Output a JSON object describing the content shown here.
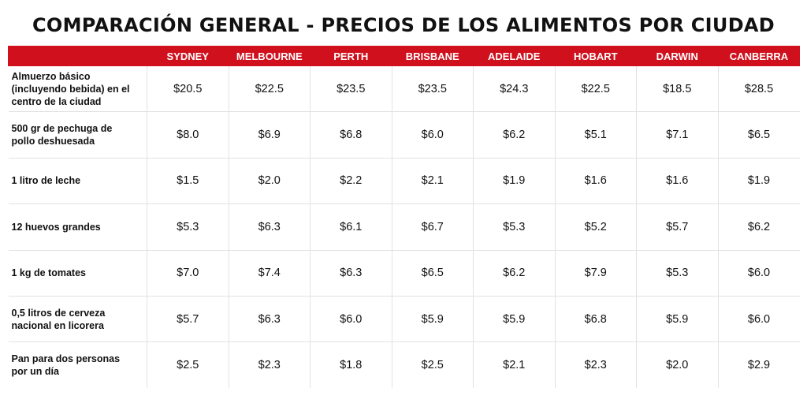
{
  "chart_data": {
    "type": "table",
    "title": "COMPARACIÓN GENERAL - PRECIOS DE LOS ALIMENTOS POR CIUDAD",
    "columns": [
      "SYDNEY",
      "MELBOURNE",
      "PERTH",
      "BRISBANE",
      "ADELAIDE",
      "HOBART",
      "DARWIN",
      "CANBERRA"
    ],
    "rows": [
      {
        "label": "Almuerzo básico (incluyendo bebida) en el centro de la ciudad",
        "values": [
          "$20.5",
          "$22.5",
          "$23.5",
          "$23.5",
          "$24.3",
          "$22.5",
          "$18.5",
          "$28.5"
        ]
      },
      {
        "label": "500 gr de pechuga de pollo deshuesada",
        "values": [
          "$8.0",
          "$6.9",
          "$6.8",
          "$6.0",
          "$6.2",
          "$5.1",
          "$7.1",
          "$6.5"
        ]
      },
      {
        "label": "1 litro de leche",
        "values": [
          "$1.5",
          "$2.0",
          "$2.2",
          "$2.1",
          "$1.9",
          "$1.6",
          "$1.6",
          "$1.9"
        ]
      },
      {
        "label": "12 huevos grandes",
        "values": [
          "$5.3",
          "$6.3",
          "$6.1",
          "$6.7",
          "$5.3",
          "$5.2",
          "$5.7",
          "$6.2"
        ]
      },
      {
        "label": "1 kg de tomates",
        "values": [
          "$7.0",
          "$7.4",
          "$6.3",
          "$6.5",
          "$6.2",
          "$7.9",
          "$5.3",
          "$6.0"
        ]
      },
      {
        "label": "0,5 litros de cerveza nacional en licorera",
        "values": [
          "$5.7",
          "$6.3",
          "$6.0",
          "$5.9",
          "$5.9",
          "$6.8",
          "$5.9",
          "$6.0"
        ]
      },
      {
        "label": "Pan para dos personas por un día",
        "values": [
          "$2.5",
          "$2.3",
          "$1.8",
          "$2.5",
          "$2.1",
          "$2.3",
          "$2.0",
          "$2.9"
        ]
      }
    ]
  },
  "colors": {
    "header_bg": "#d0111d",
    "header_text": "#ffffff",
    "grid": "#e2e2e2"
  }
}
